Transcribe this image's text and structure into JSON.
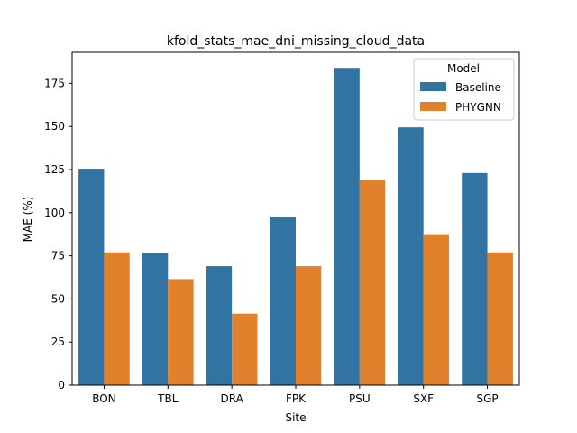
{
  "chart_data": {
    "type": "bar",
    "title": "kfold_stats_mae_dni_missing_cloud_data",
    "xlabel": "Site",
    "ylabel": "MAE (%)",
    "categories": [
      "BON",
      "TBL",
      "DRA",
      "FPK",
      "PSU",
      "SXF",
      "SGP"
    ],
    "series": [
      {
        "name": "Baseline",
        "color": "#3274a1",
        "values": [
          125.5,
          76.5,
          69.0,
          97.5,
          184.0,
          149.5,
          123.0
        ]
      },
      {
        "name": "PHYGNN",
        "color": "#e1812c",
        "values": [
          77.0,
          61.5,
          41.5,
          69.0,
          119.0,
          87.5,
          77.0
        ]
      }
    ],
    "ylim": [
      0,
      193
    ],
    "yticks": [
      0,
      25,
      50,
      75,
      100,
      125,
      150,
      175
    ],
    "legend": {
      "title": "Model",
      "position": "top-right"
    },
    "grid": false
  }
}
